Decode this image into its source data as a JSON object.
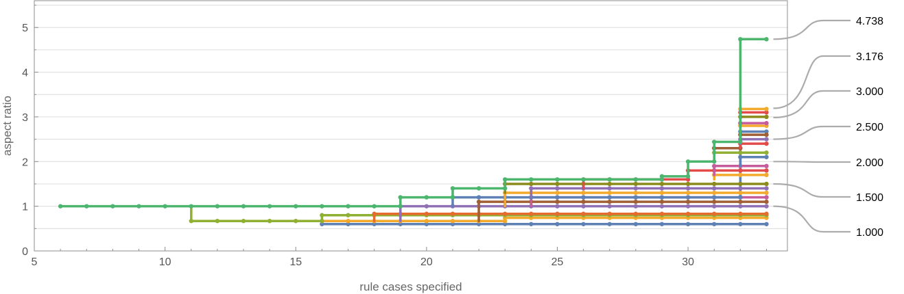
{
  "chart_data": {
    "type": "line",
    "title": "",
    "xlabel": "rule cases specified",
    "ylabel": "aspect ratio",
    "xlim": [
      5,
      33.8
    ],
    "ylim": [
      0,
      5.6
    ],
    "xticks": [
      5,
      10,
      15,
      20,
      25,
      30
    ],
    "yticks": [
      0,
      1,
      2,
      3,
      4,
      5
    ],
    "grid": {
      "horizontal": true,
      "vertical": false,
      "y_step": 0.5
    },
    "legend": "none",
    "step_plot": true,
    "end_labels": [
      {
        "text": "4.738",
        "value": 4.738
      },
      {
        "text": "3.176",
        "value": 3.176
      },
      {
        "text": "3.000",
        "value": 3.0
      },
      {
        "text": "2.500",
        "value": 2.5
      },
      {
        "text": "2.000",
        "value": 2.0
      },
      {
        "text": "1.500",
        "value": 1.5
      },
      {
        "text": "1.000",
        "value": 1.0
      }
    ],
    "series": [
      {
        "color": "#5e81b5",
        "points": [
          [
            16,
            0.6
          ],
          [
            33,
            0.6
          ]
        ]
      },
      {
        "color": "#f2a92c",
        "points": [
          [
            16,
            0.67
          ],
          [
            23,
            0.67
          ],
          [
            23,
            0.74
          ],
          [
            33,
            0.74
          ]
        ]
      },
      {
        "color": "#8fb032",
        "points": [
          [
            11,
            1.0
          ],
          [
            11,
            0.67
          ],
          [
            16,
            0.67
          ],
          [
            16,
            0.8
          ],
          [
            33,
            0.8
          ]
        ]
      },
      {
        "color": "#e56b2f",
        "points": [
          [
            18,
            0.67
          ],
          [
            18,
            0.83
          ],
          [
            33,
            0.83
          ]
        ]
      },
      {
        "color": "#8f70b5",
        "points": [
          [
            19,
            0.67
          ],
          [
            19,
            1.0
          ],
          [
            33,
            1.0
          ]
        ]
      },
      {
        "color": "#a05f34",
        "points": [
          [
            22,
            0.67
          ],
          [
            22,
            1.1
          ],
          [
            33,
            1.1
          ]
        ]
      },
      {
        "color": "#c75c9c",
        "points": [
          [
            24,
            1.0
          ],
          [
            24,
            1.2
          ],
          [
            33,
            1.2
          ]
        ]
      },
      {
        "color": "#5e81b5",
        "points": [
          [
            21,
            1.0
          ],
          [
            21,
            1.2
          ],
          [
            32,
            1.2
          ],
          [
            32,
            2.67
          ],
          [
            33,
            2.67
          ]
        ]
      },
      {
        "color": "#f2a92c",
        "points": [
          [
            23,
            1.0
          ],
          [
            23,
            1.3
          ],
          [
            33,
            1.3
          ]
        ]
      },
      {
        "color": "#8f70b5",
        "points": [
          [
            24,
            1.2
          ],
          [
            24,
            1.4
          ],
          [
            33,
            1.4
          ]
        ]
      },
      {
        "color": "#8b8b1b",
        "points": [
          [
            23,
            1.3
          ],
          [
            23,
            1.5
          ],
          [
            33,
            1.5
          ]
        ]
      },
      {
        "color": "#e34a4a",
        "points": [
          [
            26,
            1.4
          ],
          [
            26,
            1.6
          ],
          [
            30,
            1.6
          ],
          [
            30,
            1.8
          ],
          [
            33,
            1.8
          ]
        ]
      },
      {
        "color": "#f2a92c",
        "points": [
          [
            31,
            1.6
          ],
          [
            31,
            1.7
          ],
          [
            33,
            1.7
          ]
        ]
      },
      {
        "color": "#c75c9c",
        "points": [
          [
            31,
            1.7
          ],
          [
            31,
            1.9
          ],
          [
            33,
            1.9
          ]
        ]
      },
      {
        "color": "#5e81b5",
        "points": [
          [
            32,
            1.9
          ],
          [
            32,
            2.1
          ],
          [
            33,
            2.1
          ]
        ]
      },
      {
        "color": "#8fb032",
        "points": [
          [
            31,
            2.0
          ],
          [
            31,
            2.2
          ],
          [
            33,
            2.2
          ]
        ]
      },
      {
        "color": "#a05f34",
        "points": [
          [
            31,
            2.2
          ],
          [
            31,
            2.3
          ],
          [
            32,
            2.3
          ],
          [
            32,
            2.6
          ],
          [
            33,
            2.6
          ]
        ]
      },
      {
        "color": "#e34a4a",
        "points": [
          [
            32,
            2.3
          ],
          [
            32,
            2.4
          ],
          [
            33,
            2.4
          ]
        ]
      },
      {
        "color": "#8f70b5",
        "points": [
          [
            32,
            2.4
          ],
          [
            32,
            2.5
          ],
          [
            33,
            2.5
          ]
        ]
      },
      {
        "color": "#f2a92c",
        "points": [
          [
            32,
            2.7
          ],
          [
            32,
            2.8
          ],
          [
            33,
            2.8
          ]
        ]
      },
      {
        "color": "#c75c9c",
        "points": [
          [
            32,
            2.8
          ],
          [
            32,
            2.86
          ],
          [
            33,
            2.86
          ]
        ]
      },
      {
        "color": "#8b8b1b",
        "points": [
          [
            32,
            2.86
          ],
          [
            32,
            3.0
          ],
          [
            33,
            3.0
          ]
        ]
      },
      {
        "color": "#e34a4a",
        "points": [
          [
            32,
            3.0
          ],
          [
            32,
            3.1
          ],
          [
            33,
            3.1
          ]
        ]
      },
      {
        "color": "#f2a92c",
        "points": [
          [
            32,
            3.1
          ],
          [
            32,
            3.176
          ],
          [
            33,
            3.176
          ]
        ]
      },
      {
        "color": "#4cb56e",
        "points": [
          [
            6,
            1.0
          ],
          [
            19,
            1.0
          ],
          [
            19,
            1.2
          ],
          [
            21,
            1.2
          ],
          [
            21,
            1.4
          ],
          [
            23,
            1.4
          ],
          [
            23,
            1.6
          ],
          [
            29,
            1.6
          ],
          [
            29,
            1.67
          ],
          [
            30,
            1.67
          ],
          [
            30,
            2.0
          ],
          [
            31,
            2.0
          ],
          [
            31,
            2.44
          ],
          [
            32,
            2.44
          ],
          [
            32,
            4.738
          ],
          [
            33,
            4.738
          ]
        ]
      }
    ]
  }
}
